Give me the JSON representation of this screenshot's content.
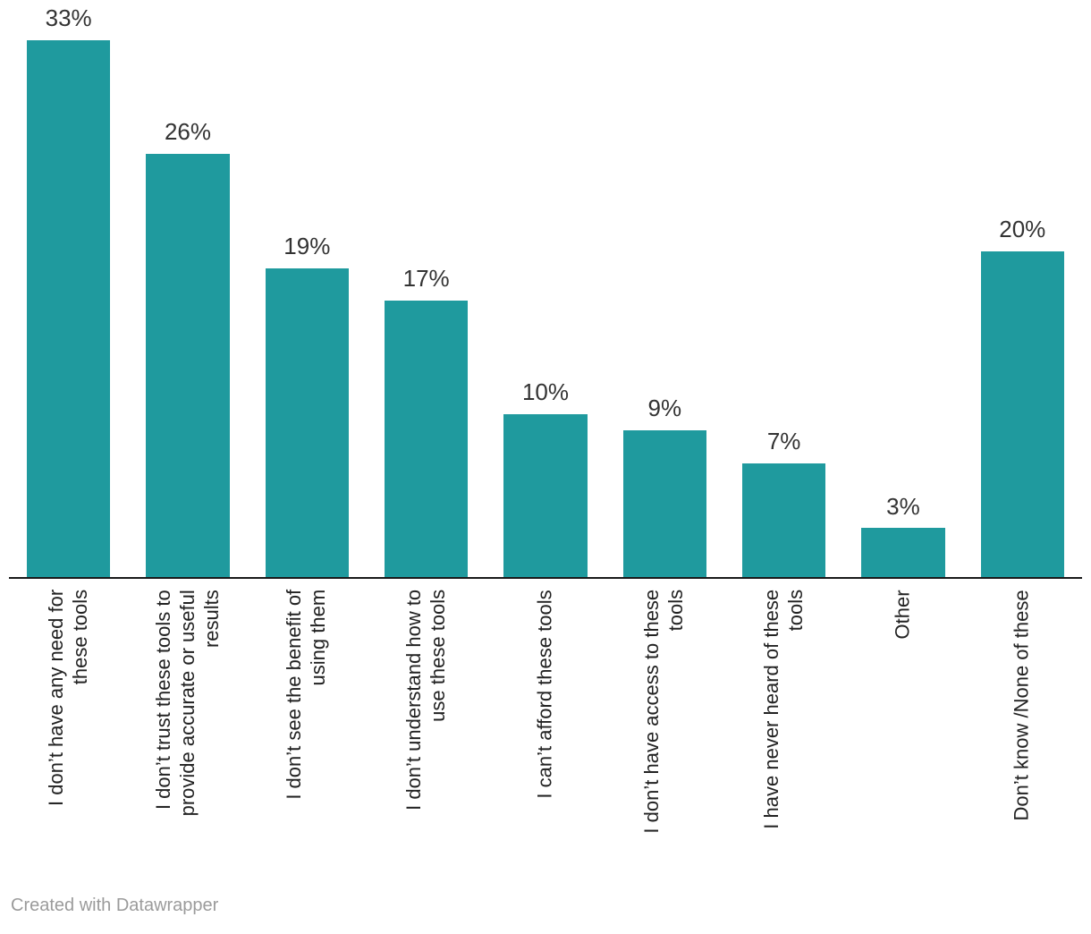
{
  "chart_data": {
    "type": "bar",
    "orientation": "vertical",
    "title": "",
    "xlabel": "",
    "ylabel": "",
    "ylim": [
      0,
      33
    ],
    "grid": false,
    "legend": false,
    "categories": [
      "I don’t have any need for\nthese tools",
      "I don’t trust these tools to\nprovide accurate or useful\nresults",
      "I don’t see the benefit of\nusing them",
      "I don’t understand how to\nuse these tools",
      "I can’t afford these tools",
      "I don’t have access to these\ntools",
      "I have never heard of these\ntools",
      "Other",
      "Don’t know /None of these"
    ],
    "values": [
      33,
      26,
      19,
      17,
      10,
      9,
      7,
      3,
      20
    ],
    "value_labels": [
      "33%",
      "26%",
      "19%",
      "17%",
      "10%",
      "9%",
      "7%",
      "3%",
      "20%"
    ]
  },
  "colors": {
    "bar": "#1f9a9e",
    "axis_line": "#18191a",
    "value_label": "#333333",
    "category_label": "#222222",
    "footer_text": "#9b9b9b",
    "background": "#ffffff"
  },
  "footer": {
    "credit": "Created with Datawrapper"
  }
}
